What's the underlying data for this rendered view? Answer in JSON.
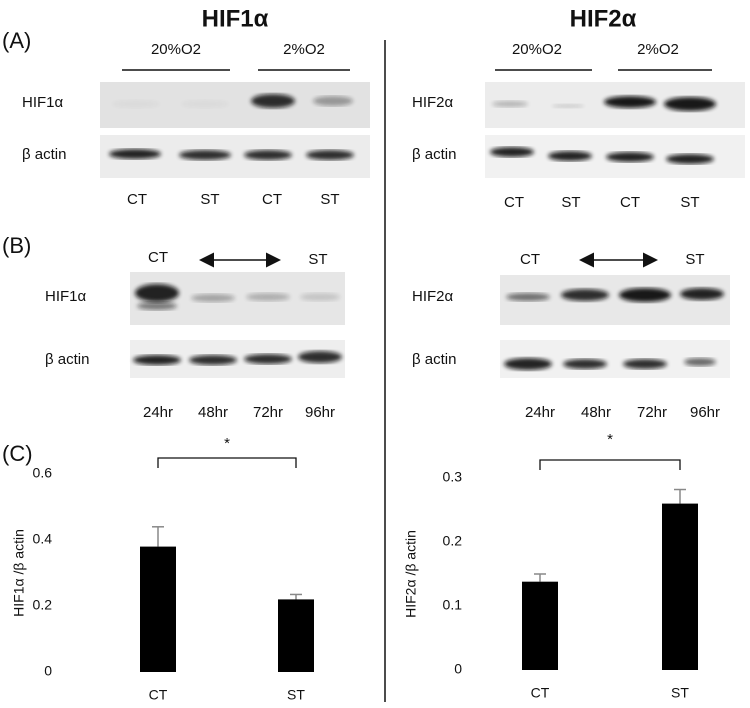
{
  "titles": [
    "HIF1α",
    "HIF2α"
  ],
  "panel_labels": [
    "(A)",
    "(B)",
    "(C)"
  ],
  "blots_a": [
    {
      "conditions": [
        "20%O2",
        "2%O2"
      ],
      "rows": [
        "HIF1α",
        "β actin"
      ],
      "lanes": [
        "CT",
        "ST",
        "CT",
        "ST"
      ]
    },
    {
      "conditions": [
        "20%O2",
        "2%O2"
      ],
      "rows": [
        "HIF2α",
        "β actin"
      ],
      "lanes": [
        "CT",
        "ST",
        "CT",
        "ST"
      ]
    }
  ],
  "blots_b": [
    {
      "start": "CT",
      "end": "ST",
      "rows": [
        "HIF1α",
        "β actin"
      ],
      "times": [
        "24hr",
        "48hr",
        "72hr",
        "96hr"
      ]
    },
    {
      "start": "CT",
      "end": "ST",
      "rows": [
        "HIF2α",
        "β actin"
      ],
      "times": [
        "24hr",
        "48hr",
        "72hr",
        "96hr"
      ]
    }
  ],
  "chart_data": [
    {
      "type": "bar",
      "ylabel": "HIF1α /β actin",
      "categories": [
        "CT",
        "ST"
      ],
      "values": [
        0.38,
        0.22
      ],
      "errors": [
        0.06,
        0.015
      ],
      "color": "#000000",
      "ylim": [
        0,
        0.6
      ],
      "yticks": [
        0,
        0.2,
        0.4,
        0.6
      ],
      "annotation": "*"
    },
    {
      "type": "bar",
      "ylabel": "HIF2α /β actin",
      "categories": [
        "CT",
        "ST"
      ],
      "values": [
        0.138,
        0.26
      ],
      "errors": [
        0.012,
        0.022
      ],
      "color": "#000000",
      "ylim": [
        0,
        0.3
      ],
      "yticks": [
        0,
        0.1,
        0.2,
        0.3
      ],
      "annotation": "*"
    }
  ]
}
